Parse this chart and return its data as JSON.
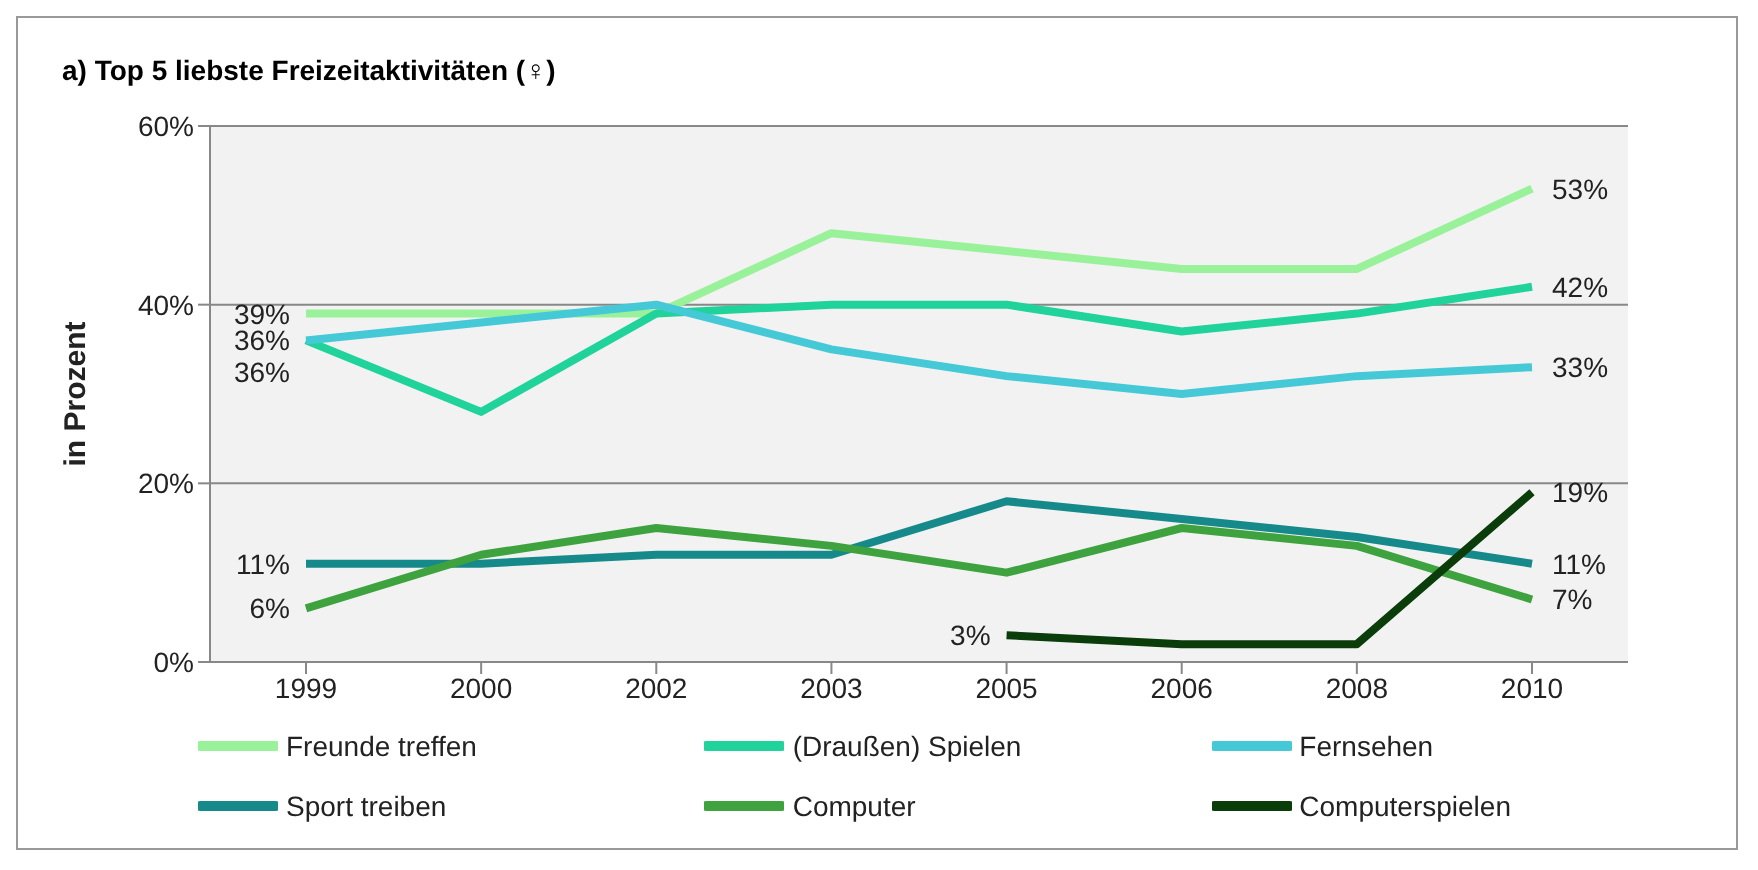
{
  "chart_data": {
    "type": "line",
    "title": "a) Top 5 liebste Freizeitaktivitäten (♀)",
    "ylabel": "in Prozent",
    "categories": [
      "1999",
      "2000",
      "2002",
      "2003",
      "2005",
      "2006",
      "2008",
      "2010"
    ],
    "series": [
      {
        "name": "Freunde treffen",
        "color": "#99f299",
        "values": [
          39,
          39,
          39,
          48,
          46,
          44,
          44,
          53
        ],
        "value_labels": [
          "39%",
          null,
          null,
          null,
          null,
          null,
          null,
          "53%"
        ]
      },
      {
        "name": "(Draußen) Spielen",
        "color": "#1fd39a",
        "values": [
          36,
          28,
          39,
          40,
          40,
          37,
          39,
          42
        ],
        "value_labels": [
          "36%",
          null,
          null,
          null,
          null,
          null,
          null,
          "42%"
        ]
      },
      {
        "name": "Fernsehen",
        "color": "#45c9d6",
        "values": [
          36,
          38,
          40,
          35,
          32,
          30,
          32,
          33
        ],
        "value_labels": [
          "36%",
          null,
          null,
          null,
          null,
          null,
          null,
          "33%"
        ]
      },
      {
        "name": "Sport treiben",
        "color": "#168a8a",
        "values": [
          11,
          11,
          12,
          12,
          18,
          16,
          14,
          11
        ],
        "value_labels": [
          "11%",
          null,
          null,
          null,
          null,
          null,
          null,
          "11%"
        ]
      },
      {
        "name": "Computer",
        "color": "#3ea33e",
        "values": [
          6,
          12,
          15,
          13,
          10,
          15,
          13,
          7
        ],
        "value_labels": [
          "6%",
          null,
          null,
          null,
          null,
          null,
          null,
          "7%"
        ]
      },
      {
        "name": "Computerspielen",
        "color": "#0b3d0b",
        "values": [
          null,
          null,
          null,
          null,
          3,
          2,
          2,
          19
        ],
        "value_labels": [
          null,
          null,
          null,
          null,
          "3%",
          null,
          null,
          "19%"
        ]
      }
    ],
    "ylim": [
      0,
      60
    ],
    "yticks": [
      {
        "value": 0,
        "label": "0%"
      },
      {
        "value": 20,
        "label": "20%"
      },
      {
        "value": 40,
        "label": "40%"
      },
      {
        "value": 60,
        "label": "60%"
      }
    ],
    "grid": "y",
    "legend": "bottom",
    "marker": "none",
    "line_style": "solid"
  }
}
